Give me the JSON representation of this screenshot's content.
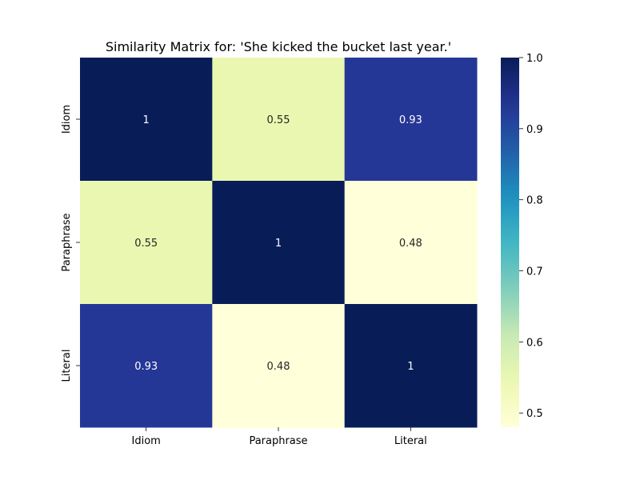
{
  "chart_data": {
    "type": "heatmap",
    "title": "Similarity Matrix for: 'She kicked the bucket last year.'",
    "x_categories": [
      "Idiom",
      "Paraphrase",
      "Literal"
    ],
    "y_categories": [
      "Idiom",
      "Paraphrase",
      "Literal"
    ],
    "values": [
      [
        1,
        0.55,
        0.93
      ],
      [
        0.55,
        1,
        0.48
      ],
      [
        0.93,
        0.48,
        1
      ]
    ],
    "cell_labels": [
      [
        "1",
        "0.55",
        "0.93"
      ],
      [
        "0.55",
        "1",
        "0.48"
      ],
      [
        "0.93",
        "0.48",
        "1"
      ]
    ],
    "colormap": "YlGnBu",
    "colorbar": {
      "range": [
        0.48,
        1.0
      ],
      "ticks": [
        0.5,
        0.6,
        0.7,
        0.8,
        0.9,
        1.0
      ],
      "tick_labels": [
        "0.5",
        "0.6",
        "0.7",
        "0.8",
        "0.9",
        "1.0"
      ]
    },
    "xlabel": "",
    "ylabel": "",
    "grid": false,
    "legend": "colorbar-right"
  }
}
